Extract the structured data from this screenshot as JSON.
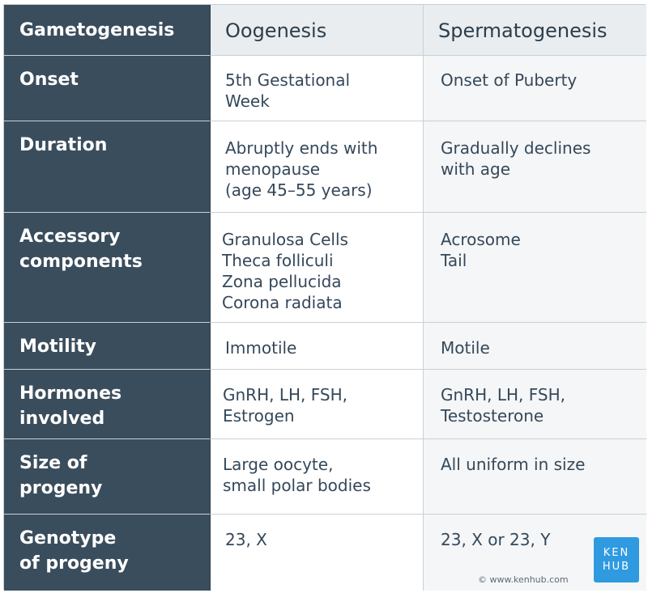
{
  "table": {
    "headers": [
      "Gametogenesis",
      "Oogenesis",
      "Spermatogenesis"
    ],
    "rows": [
      {
        "label": "Onset",
        "oogenesis": "5th Gestational\nWeek",
        "spermatogenesis": "Onset of Puberty"
      },
      {
        "label": "Duration",
        "oogenesis": "Abruptly ends with\nmenopause\n(age 45–55 years)",
        "spermatogenesis": "Gradually declines\nwith age"
      },
      {
        "label": "Accessory\ncomponents",
        "oogenesis": "Granulosa Cells\nTheca folliculi\nZona pellucida\nCorona radiata",
        "spermatogenesis": "Acrosome\nTail"
      },
      {
        "label": "Motility",
        "oogenesis": "Immotile",
        "spermatogenesis": "Motile"
      },
      {
        "label": "Hormones\ninvolved",
        "oogenesis": "GnRH, LH, FSH,\nEstrogen",
        "spermatogenesis": "GnRH, LH, FSH,\nTestosterone"
      },
      {
        "label": "Size of\nprogeny",
        "oogenesis": "Large oocyte,\nsmall polar bodies",
        "spermatogenesis": "All uniform in size"
      },
      {
        "label": "Genotype\nof progeny",
        "oogenesis": "23, X",
        "spermatogenesis": "23, X or 23, Y"
      }
    ]
  },
  "branding": {
    "logo_line1": "KEN",
    "logo_line2": "HUB",
    "copyright": "© www.kenhub.com",
    "logo_color": "#2f9ae0"
  },
  "colors": {
    "header_dark": "#3a4d5c",
    "header_light": "#e9edef",
    "row_alt": "#f4f6f7"
  }
}
